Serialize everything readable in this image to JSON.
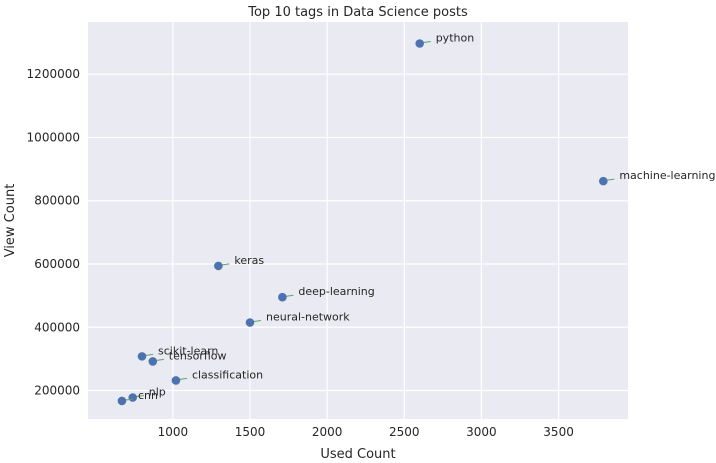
{
  "chart_data": {
    "type": "scatter",
    "title": "Top 10 tags in Data Science posts",
    "xlabel": "Used Count",
    "ylabel": "View Count",
    "xlim": [
      450,
      3950
    ],
    "ylim": [
      110000,
      1365000
    ],
    "xticks": [
      1000,
      1500,
      2000,
      2500,
      3000,
      3500
    ],
    "yticks": [
      200000,
      400000,
      600000,
      800000,
      1000000,
      1200000
    ],
    "grid": true,
    "point_color": "#4c72b0",
    "leader_color": "#55a868",
    "background_color": "#eaeaf2",
    "points": [
      {
        "label": "python",
        "x": 2600,
        "y": 1297000
      },
      {
        "label": "machine-learning",
        "x": 3790,
        "y": 862000
      },
      {
        "label": "keras",
        "x": 1295,
        "y": 594000
      },
      {
        "label": "deep-learning",
        "x": 1710,
        "y": 495000
      },
      {
        "label": "neural-network",
        "x": 1500,
        "y": 415000
      },
      {
        "label": "scikit-learn",
        "x": 800,
        "y": 308000
      },
      {
        "label": "tensorflow",
        "x": 870,
        "y": 292000
      },
      {
        "label": "classification",
        "x": 1020,
        "y": 232000
      },
      {
        "label": "nlp",
        "x": 740,
        "y": 178000
      },
      {
        "label": "cnn",
        "x": 670,
        "y": 167000
      }
    ]
  }
}
